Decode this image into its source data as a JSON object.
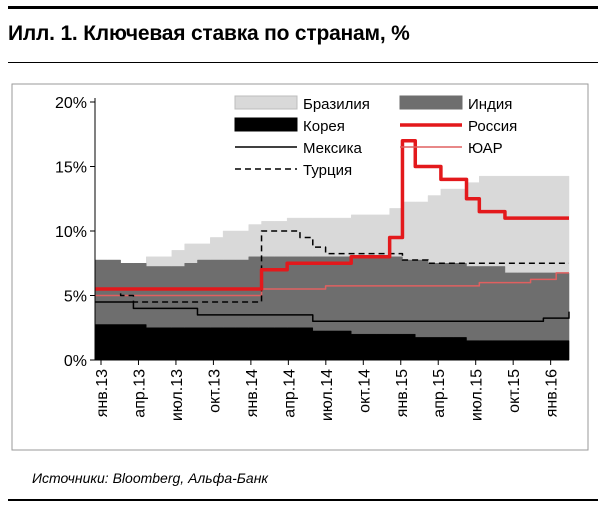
{
  "title": "Илл. 1. Ключевая ставка по странам, %",
  "source": "Источники: Bloomberg, Альфа-Банк",
  "chart_data": {
    "type": "area",
    "x_labels": [
      "янв.13",
      "апр.13",
      "июл.13",
      "окт.13",
      "янв.14",
      "апр.14",
      "июл.14",
      "окт.14",
      "янв.15",
      "апр.15",
      "июл.15",
      "окт.15",
      "янв.16"
    ],
    "y_ticks": [
      "0%",
      "5%",
      "10%",
      "15%",
      "20%"
    ],
    "ylim": [
      0,
      20
    ],
    "x_index": [
      0,
      1,
      2,
      3,
      4,
      5,
      6,
      7,
      8,
      9,
      10,
      11,
      12,
      13,
      14,
      15,
      16,
      17,
      18,
      19,
      20,
      21,
      22,
      23,
      24,
      25,
      26,
      27,
      28,
      29,
      30,
      31,
      32,
      33,
      34,
      35,
      36,
      37
    ],
    "series": [
      {
        "name": "Бразилия",
        "kind": "area",
        "color": "#d9d9d9",
        "values": [
          7.25,
          7.25,
          7.25,
          7.5,
          8.0,
          8.0,
          8.5,
          9.0,
          9.0,
          9.5,
          10.0,
          10.0,
          10.5,
          10.75,
          10.75,
          11.0,
          11.0,
          11.0,
          11.0,
          11.0,
          11.25,
          11.25,
          11.25,
          11.75,
          12.25,
          12.25,
          12.75,
          13.25,
          13.25,
          13.75,
          14.25,
          14.25,
          14.25,
          14.25,
          14.25,
          14.25,
          14.25,
          14.25
        ]
      },
      {
        "name": "Индия",
        "kind": "area",
        "color": "#6e6e6e",
        "values": [
          7.75,
          7.75,
          7.5,
          7.5,
          7.25,
          7.25,
          7.25,
          7.5,
          7.75,
          7.75,
          7.75,
          7.75,
          8.0,
          8.0,
          8.0,
          8.0,
          8.0,
          8.0,
          8.0,
          8.0,
          8.0,
          8.0,
          8.0,
          8.0,
          7.75,
          7.75,
          7.5,
          7.5,
          7.5,
          7.25,
          7.25,
          7.25,
          6.75,
          6.75,
          6.75,
          6.75,
          6.75,
          6.75
        ]
      },
      {
        "name": "Корея",
        "kind": "area",
        "color": "#000000",
        "values": [
          2.75,
          2.75,
          2.75,
          2.75,
          2.5,
          2.5,
          2.5,
          2.5,
          2.5,
          2.5,
          2.5,
          2.5,
          2.5,
          2.5,
          2.5,
          2.5,
          2.5,
          2.25,
          2.25,
          2.25,
          2.0,
          2.0,
          2.0,
          2.0,
          2.0,
          1.75,
          1.75,
          1.75,
          1.75,
          1.5,
          1.5,
          1.5,
          1.5,
          1.5,
          1.5,
          1.5,
          1.5,
          1.5
        ]
      },
      {
        "name": "Россия",
        "kind": "line",
        "color": "#e3191c",
        "width": 3.5,
        "values": [
          5.5,
          5.5,
          5.5,
          5.5,
          5.5,
          5.5,
          5.5,
          5.5,
          5.5,
          5.5,
          5.5,
          5.5,
          5.5,
          7.0,
          7.0,
          7.5,
          7.5,
          7.5,
          7.5,
          7.5,
          8.0,
          8.0,
          8.0,
          9.5,
          17.0,
          15.0,
          15.0,
          14.0,
          14.0,
          12.5,
          11.5,
          11.5,
          11.0,
          11.0,
          11.0,
          11.0,
          11.0,
          11.0
        ]
      },
      {
        "name": "Мексика",
        "kind": "line",
        "color": "#000000",
        "width": 1.5,
        "values": [
          4.5,
          4.5,
          4.5,
          4.0,
          4.0,
          4.0,
          4.0,
          4.0,
          3.5,
          3.5,
          3.5,
          3.5,
          3.5,
          3.5,
          3.5,
          3.5,
          3.5,
          3.0,
          3.0,
          3.0,
          3.0,
          3.0,
          3.0,
          3.0,
          3.0,
          3.0,
          3.0,
          3.0,
          3.0,
          3.0,
          3.0,
          3.0,
          3.0,
          3.0,
          3.0,
          3.25,
          3.25,
          3.75
        ]
      },
      {
        "name": "ЮАР",
        "kind": "line",
        "color": "#e06060",
        "width": 1.5,
        "values": [
          5.0,
          5.0,
          5.0,
          5.0,
          5.0,
          5.0,
          5.0,
          5.0,
          5.0,
          5.0,
          5.0,
          5.0,
          5.0,
          5.5,
          5.5,
          5.5,
          5.5,
          5.5,
          5.75,
          5.75,
          5.75,
          5.75,
          5.75,
          5.75,
          5.75,
          5.75,
          5.75,
          5.75,
          5.75,
          5.75,
          6.0,
          6.0,
          6.0,
          6.0,
          6.25,
          6.25,
          6.75,
          6.75
        ]
      },
      {
        "name": "Турция",
        "kind": "line",
        "color": "#000000",
        "width": 1.5,
        "dash": true,
        "values": [
          5.5,
          5.5,
          5.0,
          4.5,
          4.5,
          4.5,
          4.5,
          4.5,
          4.5,
          4.5,
          4.5,
          4.5,
          4.5,
          10.0,
          10.0,
          10.0,
          9.5,
          8.75,
          8.25,
          8.25,
          8.25,
          8.25,
          8.25,
          8.25,
          7.75,
          7.75,
          7.5,
          7.5,
          7.5,
          7.5,
          7.5,
          7.5,
          7.5,
          7.5,
          7.5,
          7.5,
          7.5,
          7.5
        ]
      }
    ],
    "legend": [
      {
        "label": "Бразилия",
        "series": "Бразилия"
      },
      {
        "label": "Индия",
        "series": "Индия"
      },
      {
        "label": "Корея",
        "series": "Корея"
      },
      {
        "label": "Россия",
        "series": "Россия"
      },
      {
        "label": "Мексика",
        "series": "Мексика"
      },
      {
        "label": "ЮАР",
        "series": "ЮАР"
      },
      {
        "label": "Турция",
        "series": "Турция"
      }
    ],
    "grid": false,
    "legend_position": "top-right"
  }
}
